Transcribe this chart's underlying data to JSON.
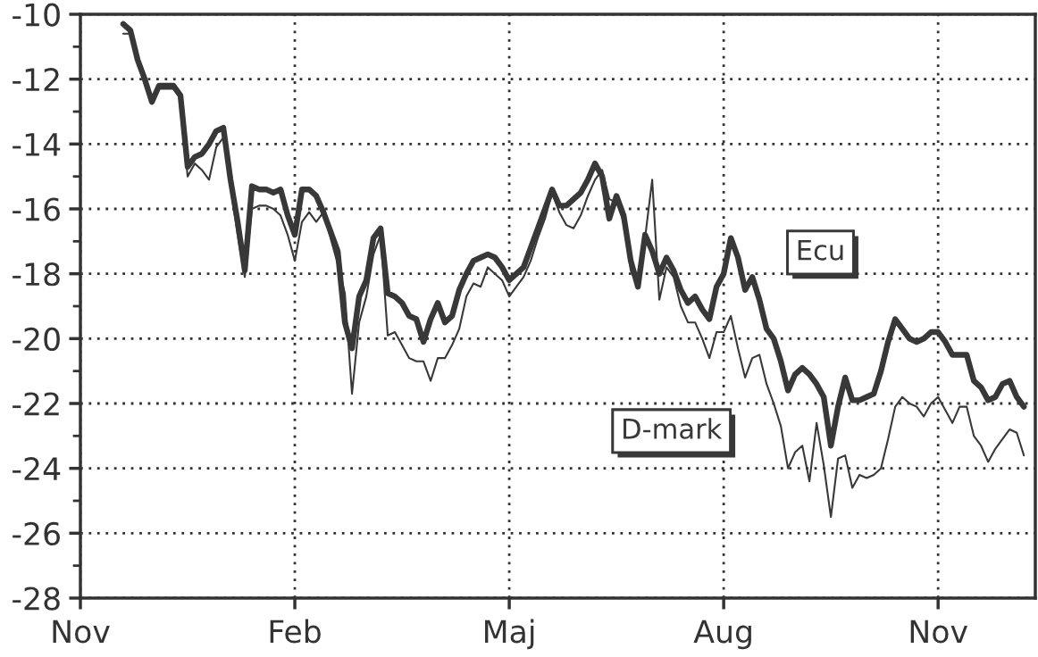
{
  "chart_data": {
    "type": "line",
    "categories": [
      "Nov",
      null,
      null,
      null,
      null,
      null,
      null,
      null,
      null,
      null,
      null,
      null,
      null,
      null,
      null,
      null,
      null,
      null,
      null,
      null,
      null,
      null,
      null,
      null,
      null,
      null,
      null,
      null,
      null,
      null,
      "Feb",
      null,
      null,
      null,
      null,
      null,
      null,
      null,
      null,
      null,
      null,
      null,
      null,
      null,
      null,
      null,
      null,
      null,
      null,
      null,
      null,
      null,
      null,
      null,
      null,
      null,
      null,
      null,
      null,
      null,
      "Maj",
      null,
      null,
      null,
      null,
      null,
      null,
      null,
      null,
      null,
      null,
      null,
      null,
      null,
      null,
      null,
      null,
      null,
      null,
      null,
      null,
      null,
      null,
      null,
      null,
      null,
      null,
      null,
      null,
      null,
      "Aug",
      null,
      null,
      null,
      null,
      null,
      null,
      null,
      null,
      null,
      null,
      null,
      null,
      null,
      null,
      null,
      null,
      null,
      null,
      null,
      null,
      null,
      null,
      null,
      null,
      null,
      null,
      null,
      null,
      null,
      "Nov",
      null,
      null,
      null,
      null,
      null,
      null,
      null,
      null,
      null,
      null,
      null,
      null,
      null
    ],
    "ylim": [
      -28,
      -10
    ],
    "yticks": [
      -28,
      {
        "value": -27,
        "label": null
      },
      -26,
      {
        "value": -25,
        "label": null
      },
      -24,
      {
        "value": -23,
        "label": null
      },
      -22,
      {
        "value": -21,
        "label": null
      },
      -20,
      {
        "value": -19,
        "label": null
      },
      -18,
      {
        "value": -17,
        "label": null
      },
      -16,
      {
        "value": -15,
        "label": null
      },
      -14,
      {
        "value": -13,
        "label": null
      },
      -12,
      {
        "value": -11,
        "label": null
      },
      -10
    ],
    "grid": true,
    "marker": "none",
    "line_style": "solid",
    "series": [
      {
        "name": "Ecu",
        "color": "#383838",
        "values": [
          null,
          null,
          null,
          null,
          null,
          null,
          -10.3,
          -10.5,
          -11.4,
          -12.0,
          -12.7,
          -12.2,
          -12.2,
          -12.2,
          -12.5,
          -14.7,
          -14.4,
          -14.3,
          -14.0,
          -13.6,
          -13.5,
          -15.1,
          -16.4,
          -17.9,
          -15.3,
          -15.4,
          -15.4,
          -15.5,
          -15.4,
          -16.2,
          -16.8,
          -15.4,
          -15.4,
          -15.6,
          -16.1,
          -16.7,
          -17.3,
          -19.5,
          -20.3,
          -18.7,
          -18.2,
          -16.9,
          -16.6,
          -18.6,
          -18.7,
          -18.9,
          -19.3,
          -19.4,
          -20.1,
          -19.4,
          -18.9,
          -19.5,
          -19.3,
          -18.5,
          -18.0,
          -17.6,
          -17.5,
          -17.4,
          -17.5,
          -17.8,
          -18.2,
          -18.0,
          -17.8,
          -17.2,
          -16.6,
          -16.0,
          -15.4,
          -15.9,
          -15.9,
          -15.7,
          -15.5,
          -15.1,
          -14.6,
          -15.0,
          -16.3,
          -15.6,
          -16.2,
          -17.6,
          -18.4,
          -16.8,
          -17.3,
          -18.0,
          -17.5,
          -17.9,
          -18.5,
          -18.9,
          -18.7,
          -19.1,
          -19.4,
          -18.4,
          -18.0,
          -16.9,
          -17.5,
          -18.5,
          -18.1,
          -18.8,
          -19.7,
          -20.0,
          -20.7,
          -21.6,
          -21.1,
          -20.9,
          -21.1,
          -21.4,
          -21.8,
          -23.3,
          -22.1,
          -21.2,
          -21.9,
          -21.9,
          -21.8,
          -21.7,
          -21.0,
          -20.1,
          -19.4,
          -19.7,
          -20.0,
          -20.1,
          -20.0,
          -19.8,
          -19.8,
          -20.1,
          -20.5,
          -20.5,
          -20.5,
          -21.3,
          -21.5,
          -21.9,
          -21.8,
          -21.4,
          -21.3,
          -21.8,
          -22.1,
          null
        ]
      },
      {
        "name": "D-mark",
        "color": "#383838",
        "values": [
          null,
          null,
          null,
          null,
          null,
          null,
          -10.6,
          -10.6,
          -11.5,
          -12.0,
          -12.7,
          -12.3,
          -12.3,
          -12.3,
          -12.6,
          -15.0,
          -14.6,
          -14.8,
          -15.1,
          -14.1,
          -13.8,
          -15.3,
          -16.8,
          -18.1,
          -16.0,
          -15.9,
          -15.9,
          -16.0,
          -16.2,
          -16.8,
          -17.6,
          -16.4,
          -16.1,
          -16.4,
          -16.1,
          -16.9,
          -17.7,
          -18.6,
          -21.7,
          -19.5,
          -18.7,
          -17.4,
          -16.8,
          -19.9,
          -19.8,
          -20.2,
          -20.6,
          -20.7,
          -20.7,
          -21.3,
          -20.6,
          -20.6,
          -20.2,
          -19.7,
          -18.7,
          -18.3,
          -18.4,
          -17.8,
          -18.0,
          -18.2,
          -18.7,
          -18.4,
          -18.1,
          -17.6,
          -16.9,
          -16.3,
          -15.5,
          -16.1,
          -16.5,
          -16.6,
          -16.2,
          -15.6,
          -15.1,
          -14.8,
          -15.7,
          -15.8,
          -16.4,
          -17.9,
          -18.4,
          -16.9,
          -15.1,
          -18.8,
          -17.8,
          -18.1,
          -19.0,
          -19.5,
          -19.5,
          -20.0,
          -20.6,
          -19.8,
          -19.8,
          -19.3,
          -20.3,
          -21.2,
          -20.6,
          -20.5,
          -21.4,
          -22.0,
          -22.7,
          -24.0,
          -23.5,
          -23.3,
          -24.4,
          -22.6,
          -23.9,
          -25.5,
          -23.7,
          -23.6,
          -24.6,
          -24.2,
          -24.3,
          -24.2,
          -24.0,
          -23.1,
          -22.1,
          -21.8,
          -22.0,
          -22.1,
          -22.4,
          -22.0,
          -21.8,
          -22.2,
          -22.6,
          -22.1,
          -22.1,
          -23.0,
          -23.3,
          -23.8,
          -23.4,
          -23.1,
          -22.8,
          -22.9,
          -23.6,
          null
        ]
      }
    ]
  }
}
